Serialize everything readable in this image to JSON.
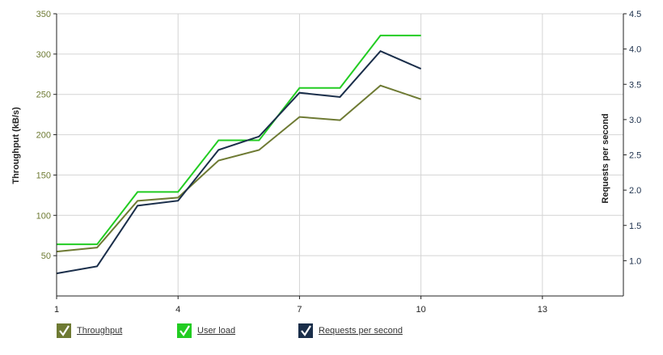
{
  "colors": {
    "throughput": "#6e7a33",
    "user_load": "#22cc22",
    "requests": "#1a2e4a",
    "grid": "#d4d4d4",
    "axis": "#222222",
    "left_axis_text": "#6e7a33",
    "right_axis_text": "#1a2e4a"
  },
  "chart_data": {
    "type": "line",
    "xlabel": "",
    "ylabel_left": "Throughput (kB/s)",
    "ylabel_right": "Requests per second",
    "x_ticks": [
      1,
      4,
      7,
      10,
      13
    ],
    "xlim": [
      1,
      15
    ],
    "ylim_left": [
      0,
      350
    ],
    "yticks_left": [
      50,
      100,
      150,
      200,
      250,
      300,
      350
    ],
    "ylim_right": [
      0.5,
      4.5
    ],
    "yticks_right": [
      "1.0",
      "1.5",
      "2.0",
      "2.5",
      "3.0",
      "3.5",
      "4.0",
      "4.5"
    ],
    "grid": true,
    "legend_position": "bottom",
    "series": [
      {
        "name": "Throughput",
        "axis": "left",
        "style": "line",
        "x": [
          1,
          2,
          3,
          4,
          5,
          6,
          7,
          8,
          9,
          10
        ],
        "values": [
          55,
          60,
          118,
          122,
          168,
          181,
          222,
          218,
          261,
          244
        ]
      },
      {
        "name": "User load",
        "axis": "left",
        "style": "step",
        "x": [
          1,
          2,
          3,
          4,
          5,
          6,
          7,
          8,
          9,
          10
        ],
        "values": [
          64,
          64,
          129,
          129,
          193,
          193,
          258,
          258,
          323,
          323
        ]
      },
      {
        "name": "Requests per second",
        "axis": "right",
        "style": "line",
        "x": [
          1,
          2,
          3,
          4,
          5,
          6,
          7,
          8,
          9,
          10
        ],
        "values": [
          0.82,
          0.92,
          1.78,
          1.85,
          2.57,
          2.76,
          3.38,
          3.32,
          3.97,
          3.72
        ]
      }
    ]
  }
}
